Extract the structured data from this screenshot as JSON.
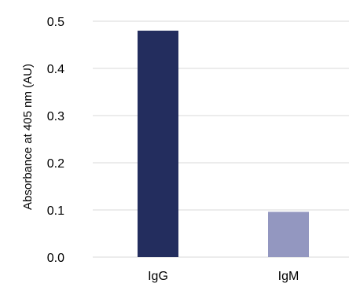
{
  "chart_data": {
    "type": "bar",
    "categories": [
      "IgG",
      "IgM"
    ],
    "values": [
      0.48,
      0.096
    ],
    "colors": [
      "#232d5e",
      "#9397c0"
    ],
    "ylabel": "Absorbance at 405 nm (AU)",
    "xlabel": "",
    "ylim": [
      0,
      0.5
    ],
    "yticks": [
      "0.0",
      "0.1",
      "0.2",
      "0.3",
      "0.4",
      "0.5"
    ],
    "grid": true,
    "legend": false
  }
}
